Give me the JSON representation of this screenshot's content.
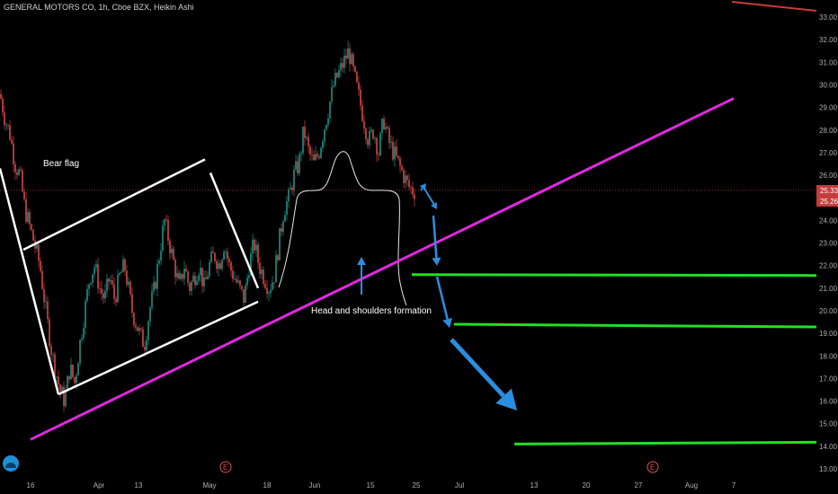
{
  "header": {
    "title": "GENERAL MOTORS CO, 1h, Cboe BZX, Heikin Ashi"
  },
  "price_tags": {
    "current": "25.33",
    "second": "25.26"
  },
  "annotations": {
    "bear_flag": "Bear flag",
    "hs": "Head and shoulders formation"
  },
  "earnings_marker": "E",
  "colors": {
    "up": "#26a69a",
    "down": "#ef5350",
    "trendline": "#e028e0",
    "support": "#22e022",
    "arrow": "#2a8ee0",
    "flag": "#ffffff",
    "resistance": "#c43c3c"
  },
  "icons": {
    "logo": "tradingview-cloud-icon",
    "arrow": "arrow-icon"
  },
  "chart_data": {
    "type": "candlestick",
    "title": "GENERAL MOTORS CO, 1h, Cboe BZX, Heikin Ashi",
    "ylim": [
      12.6,
      33.5
    ],
    "y_ticks": [
      "33.00",
      "32.00",
      "31.00",
      "30.00",
      "29.00",
      "28.00",
      "27.00",
      "26.00",
      "24.00",
      "23.00",
      "22.00",
      "21.00",
      "20.00",
      "19.00",
      "18.00",
      "17.00",
      "16.00",
      "15.00",
      "14.00",
      "13.00"
    ],
    "x_ticks": [
      "16",
      "Apr",
      "13",
      "May",
      "18",
      "Jun",
      "15",
      "25",
      "Jul",
      "13",
      "20",
      "27",
      "Aug",
      "7"
    ],
    "price_path": [
      [
        0,
        29.6
      ],
      [
        2,
        28.5
      ],
      [
        4,
        27.8
      ],
      [
        6,
        26.5
      ],
      [
        8,
        26.0
      ],
      [
        10,
        24.5
      ],
      [
        13,
        23.3
      ],
      [
        16,
        22.0
      ],
      [
        19,
        19.5
      ],
      [
        21,
        18.0
      ],
      [
        24,
        16.5
      ],
      [
        26,
        16.0
      ],
      [
        28,
        17.5
      ],
      [
        30,
        16.8
      ],
      [
        32,
        18.5
      ],
      [
        34,
        20.0
      ],
      [
        36,
        21.5
      ],
      [
        38,
        22.0
      ],
      [
        40,
        21.0
      ],
      [
        42,
        20.5
      ],
      [
        44,
        21.5
      ],
      [
        46,
        20.5
      ],
      [
        48,
        21.5
      ],
      [
        50,
        22.0
      ],
      [
        53,
        20.0
      ],
      [
        56,
        19.0
      ],
      [
        58,
        18.5
      ],
      [
        60,
        20.0
      ],
      [
        62,
        21.0
      ],
      [
        64,
        22.5
      ],
      [
        66,
        24.0
      ],
      [
        68,
        23.0
      ],
      [
        70,
        22.0
      ],
      [
        72,
        21.0
      ],
      [
        74,
        22.0
      ],
      [
        76,
        21.0
      ],
      [
        78,
        21.5
      ],
      [
        80,
        22.0
      ],
      [
        82,
        21.0
      ],
      [
        84,
        22.0
      ],
      [
        86,
        22.5
      ],
      [
        88,
        22.0
      ],
      [
        90,
        23.0
      ],
      [
        92,
        22.0
      ],
      [
        94,
        21.5
      ],
      [
        96,
        21.0
      ],
      [
        98,
        20.5
      ],
      [
        100,
        22.0
      ],
      [
        102,
        23.0
      ],
      [
        104,
        22.0
      ],
      [
        106,
        21.5
      ],
      [
        108,
        21.0
      ],
      [
        110,
        21.5
      ],
      [
        112,
        23.0
      ],
      [
        114,
        24.5
      ],
      [
        116,
        25.0
      ],
      [
        118,
        26.0
      ],
      [
        120,
        26.5
      ],
      [
        122,
        28.0
      ],
      [
        124,
        27.0
      ],
      [
        126,
        26.5
      ],
      [
        128,
        27.0
      ],
      [
        130,
        28.0
      ],
      [
        132,
        29.0
      ],
      [
        134,
        30.0
      ],
      [
        136,
        30.5
      ],
      [
        138,
        31.0
      ],
      [
        140,
        31.5
      ],
      [
        142,
        30.5
      ],
      [
        144,
        29.5
      ],
      [
        146,
        28.5
      ],
      [
        148,
        27.5
      ],
      [
        150,
        28.0
      ],
      [
        152,
        27.0
      ],
      [
        154,
        28.5
      ],
      [
        156,
        27.5
      ],
      [
        158,
        27.0
      ],
      [
        160,
        26.5
      ],
      [
        162,
        26.0
      ],
      [
        164,
        25.5
      ],
      [
        166,
        25.3
      ]
    ],
    "trendline": {
      "color": "#e028e0",
      "from": [
        34,
        14.3
      ],
      "to": [
        816,
        29.4
      ]
    },
    "bear_flag_channel": {
      "upper": [
        [
          26,
          22.7
        ],
        [
          228,
          26.7
        ]
      ],
      "lower": [
        [
          65,
          16.3
        ],
        [
          287,
          20.4
        ]
      ],
      "pole": [
        [
          0,
          26.3
        ],
        [
          65,
          16.3
        ]
      ],
      "right_edge": [
        [
          234,
          26.1
        ],
        [
          287,
          21.0
        ]
      ]
    },
    "support_levels": [
      {
        "value": 21.6,
        "from_x": 458,
        "to_x": 908
      },
      {
        "value": 19.4,
        "from_x": 505,
        "to_x": 908
      },
      {
        "value": 14.1,
        "from_x": 572,
        "to_x": 908
      }
    ],
    "resistance_line": {
      "from": [
        814,
        33.5
      ],
      "to": [
        908,
        33.1
      ]
    },
    "horizontal_level": 25.33,
    "annotations": [
      "Bear flag",
      "Head and shoulders formation"
    ]
  }
}
